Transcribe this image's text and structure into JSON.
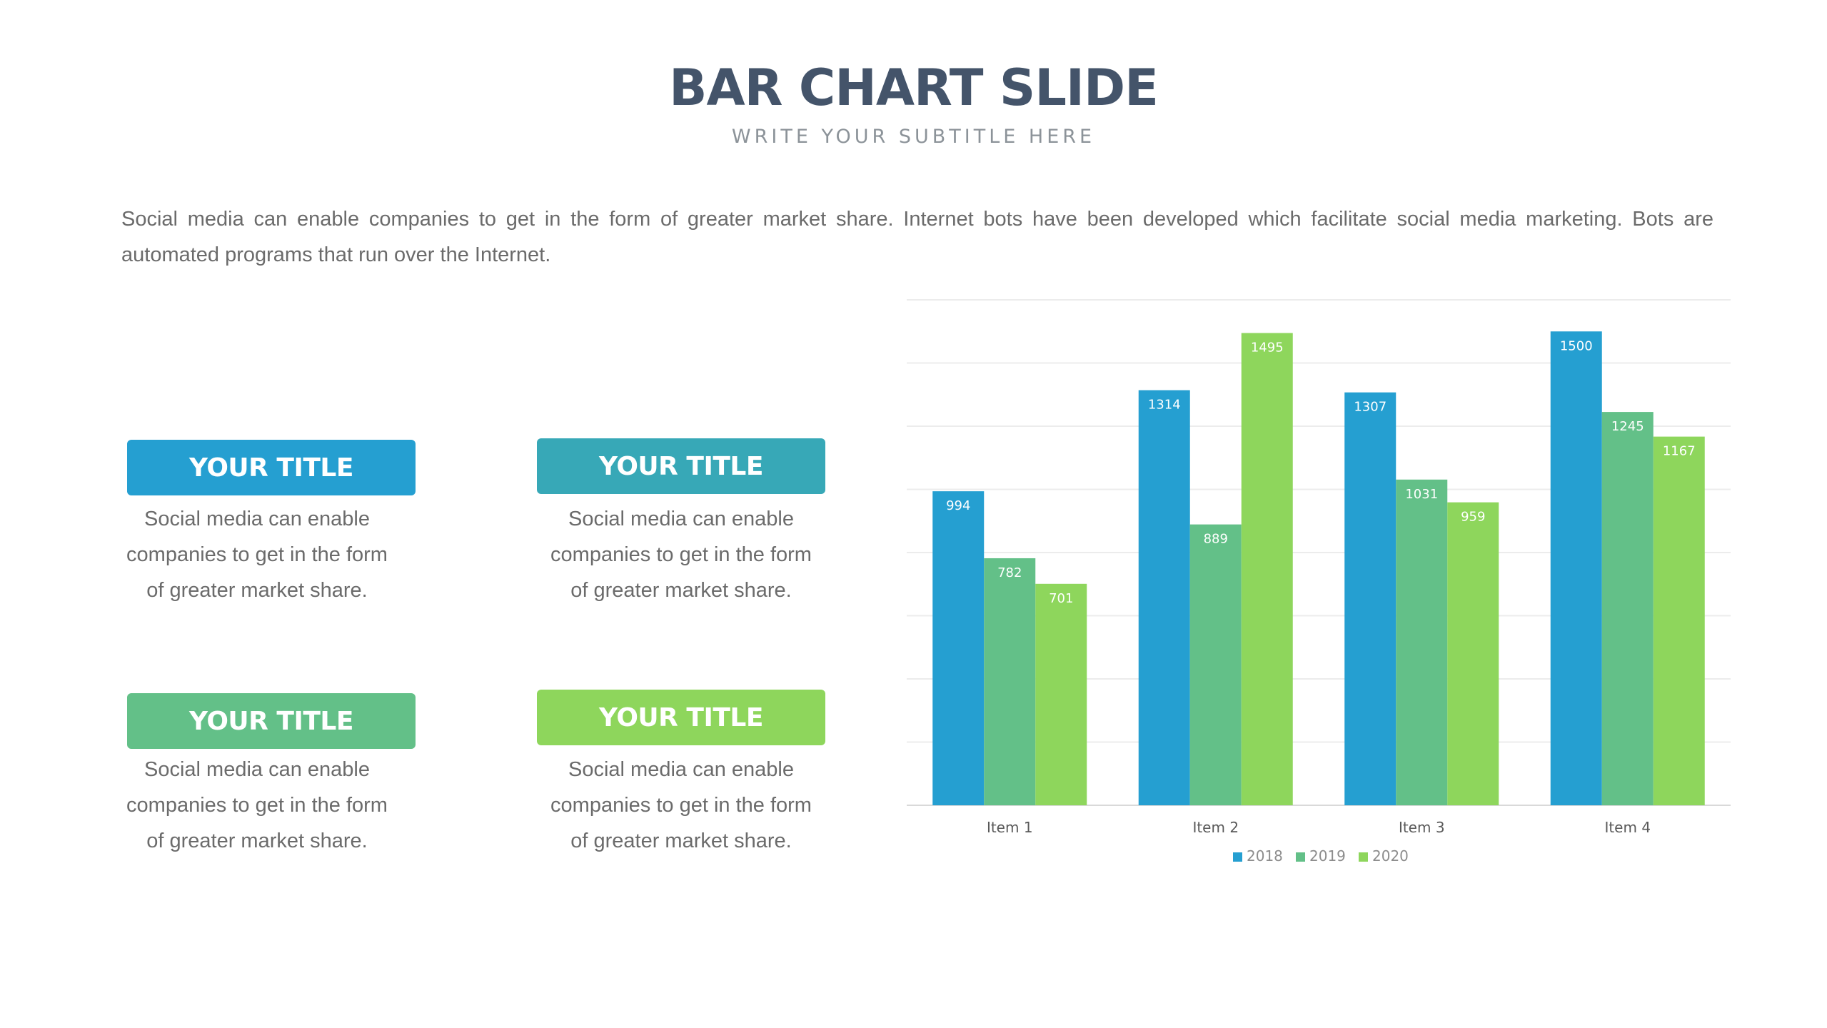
{
  "header": {
    "title": "BAR CHART SLIDE",
    "subtitle": "WRITE YOUR SUBTITLE HERE"
  },
  "intro": "Social media can enable companies to get in the form of greater market share. Internet bots have been developed which facilitate social media marketing. Bots are automated programs that run over the Internet.",
  "cards": [
    {
      "title": "YOUR TITLE",
      "text": "Social media can enable companies to get in the form of greater market share.",
      "color": "#259fd1"
    },
    {
      "title": "YOUR TITLE",
      "text": "Social media can enable companies to get in the form of greater market share.",
      "color": "#37a8b7"
    },
    {
      "title": "YOUR TITLE",
      "text": "Social media can enable companies to get in the form of greater market share.",
      "color": "#63c088"
    },
    {
      "title": "YOUR TITLE",
      "text": "Social media can enable companies to get in the form of greater market share.",
      "color": "#8ed65c"
    }
  ],
  "chart_data": {
    "type": "bar",
    "title": "",
    "xlabel": "",
    "ylabel": "",
    "categories": [
      "Item 1",
      "Item 2",
      "Item 3",
      "Item 4"
    ],
    "series": [
      {
        "name": "2018",
        "values": [
          994,
          1314,
          1307,
          1500
        ],
        "color": "#259fd1"
      },
      {
        "name": "2019",
        "values": [
          782,
          889,
          1031,
          1245
        ],
        "color": "#63c088"
      },
      {
        "name": "2020",
        "values": [
          701,
          1495,
          959,
          1167
        ],
        "color": "#8ed65c"
      }
    ],
    "ylim": [
      0,
      1600
    ],
    "grid": true,
    "data_labels": true,
    "legend": "bottom"
  }
}
